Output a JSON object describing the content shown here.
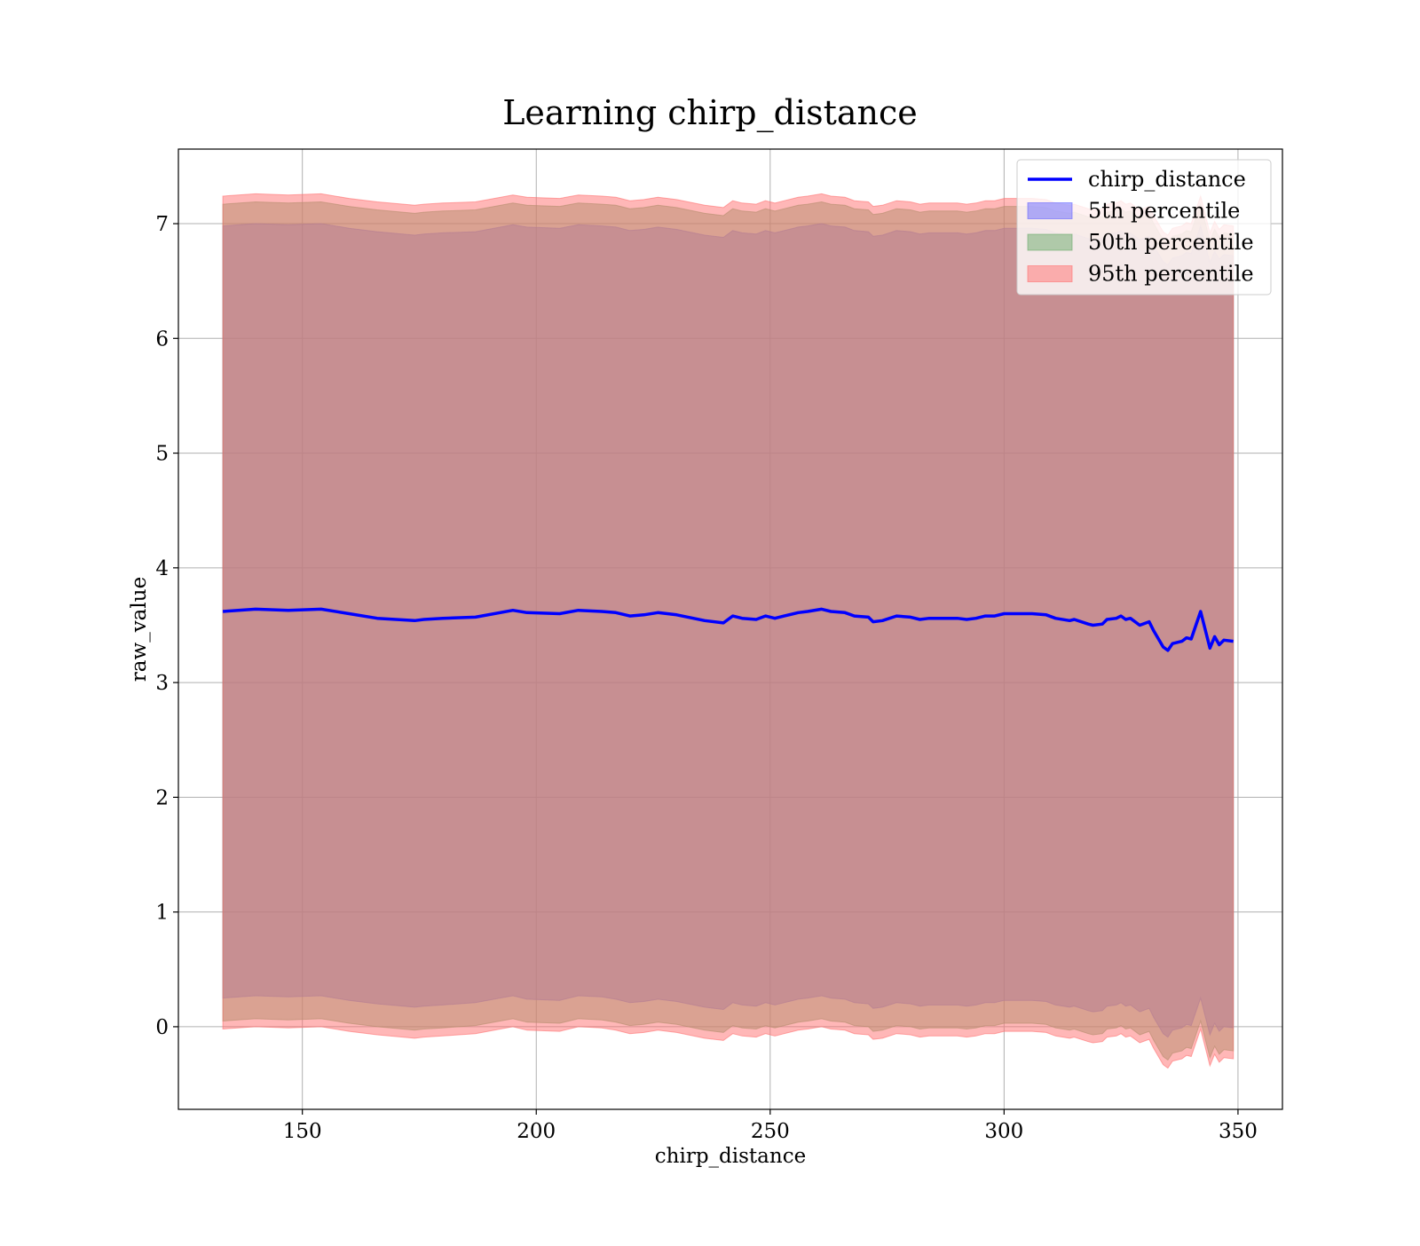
{
  "chart_data": {
    "type": "area",
    "title": "Learning chirp_distance",
    "xlabel": "chirp_distance",
    "ylabel": "raw_value",
    "xlim": [
      123.5,
      359.5
    ],
    "ylim": [
      -0.72,
      7.65
    ],
    "xticks": [
      150,
      200,
      250,
      300,
      350
    ],
    "yticks": [
      0,
      1,
      2,
      3,
      4,
      5,
      6,
      7
    ],
    "grid": true,
    "legend_position": "top-right",
    "x": [
      133,
      140,
      147,
      154,
      160,
      166,
      174,
      176,
      180,
      187,
      195,
      198,
      205,
      209,
      214,
      217,
      220,
      223,
      226,
      230,
      236,
      240,
      242,
      244,
      247,
      249,
      251,
      253,
      256,
      258,
      261,
      263,
      266,
      268,
      271,
      272,
      274,
      277,
      280,
      282,
      284,
      287,
      290,
      292,
      294,
      296,
      298,
      300,
      302,
      304,
      306,
      309,
      311,
      314,
      315,
      318,
      319,
      321,
      322,
      324,
      325,
      326,
      327,
      329,
      331,
      332,
      334,
      335,
      336,
      338,
      339,
      340,
      342,
      344,
      345,
      346,
      347,
      349
    ],
    "series": [
      {
        "name": "chirp_distance",
        "kind": "line",
        "color": "#0000ff",
        "values": [
          3.62,
          3.64,
          3.63,
          3.64,
          3.6,
          3.56,
          3.54,
          3.55,
          3.56,
          3.57,
          3.63,
          3.61,
          3.6,
          3.63,
          3.62,
          3.61,
          3.58,
          3.59,
          3.61,
          3.59,
          3.54,
          3.52,
          3.58,
          3.56,
          3.55,
          3.58,
          3.56,
          3.58,
          3.61,
          3.62,
          3.64,
          3.62,
          3.61,
          3.58,
          3.57,
          3.53,
          3.54,
          3.58,
          3.57,
          3.55,
          3.56,
          3.56,
          3.56,
          3.55,
          3.56,
          3.58,
          3.58,
          3.6,
          3.6,
          3.6,
          3.6,
          3.59,
          3.56,
          3.54,
          3.55,
          3.51,
          3.5,
          3.51,
          3.55,
          3.56,
          3.58,
          3.55,
          3.56,
          3.5,
          3.53,
          3.45,
          3.31,
          3.28,
          3.34,
          3.36,
          3.39,
          3.38,
          3.62,
          3.3,
          3.4,
          3.33,
          3.37,
          3.36
        ]
      },
      {
        "name": "5th percentile",
        "kind": "band",
        "color": "#6666ff",
        "lower": [
          0.25,
          0.27,
          0.26,
          0.27,
          0.23,
          0.2,
          0.17,
          0.18,
          0.19,
          0.21,
          0.27,
          0.24,
          0.23,
          0.27,
          0.26,
          0.24,
          0.21,
          0.22,
          0.24,
          0.22,
          0.17,
          0.15,
          0.21,
          0.19,
          0.18,
          0.21,
          0.19,
          0.21,
          0.24,
          0.25,
          0.27,
          0.25,
          0.24,
          0.21,
          0.2,
          0.16,
          0.17,
          0.21,
          0.2,
          0.18,
          0.19,
          0.19,
          0.19,
          0.18,
          0.19,
          0.21,
          0.21,
          0.23,
          0.23,
          0.23,
          0.23,
          0.22,
          0.19,
          0.17,
          0.18,
          0.14,
          0.13,
          0.14,
          0.18,
          0.19,
          0.21,
          0.18,
          0.19,
          0.13,
          0.16,
          0.08,
          -0.06,
          -0.09,
          -0.03,
          -0.01,
          0.02,
          0.01,
          0.25,
          -0.07,
          0.03,
          -0.04,
          0.0,
          -0.01
        ],
        "upper": [
          6.98,
          7.0,
          6.99,
          7.0,
          6.96,
          6.93,
          6.9,
          6.91,
          6.92,
          6.93,
          6.99,
          6.97,
          6.96,
          6.99,
          6.98,
          6.97,
          6.94,
          6.95,
          6.97,
          6.95,
          6.9,
          6.88,
          6.94,
          6.92,
          6.91,
          6.94,
          6.92,
          6.94,
          6.97,
          6.98,
          7.0,
          6.98,
          6.97,
          6.94,
          6.93,
          6.89,
          6.9,
          6.94,
          6.93,
          6.91,
          6.92,
          6.92,
          6.92,
          6.91,
          6.92,
          6.94,
          6.94,
          6.96,
          6.96,
          6.96,
          6.96,
          6.95,
          6.92,
          6.9,
          6.91,
          6.87,
          6.86,
          6.87,
          6.91,
          6.92,
          6.94,
          6.91,
          6.92,
          6.86,
          6.89,
          6.81,
          6.67,
          6.64,
          6.7,
          6.72,
          6.75,
          6.74,
          6.98,
          6.66,
          6.76,
          6.69,
          6.73,
          6.72
        ]
      },
      {
        "name": "50th percentile",
        "kind": "band",
        "color": "#6aaa6a",
        "lower": [
          0.05,
          0.07,
          0.06,
          0.07,
          0.03,
          0.0,
          -0.03,
          -0.02,
          -0.01,
          0.01,
          0.07,
          0.04,
          0.03,
          0.07,
          0.06,
          0.04,
          0.01,
          0.02,
          0.04,
          0.02,
          -0.03,
          -0.05,
          0.01,
          -0.01,
          -0.02,
          0.01,
          -0.01,
          0.01,
          0.04,
          0.05,
          0.07,
          0.05,
          0.04,
          0.01,
          0.0,
          -0.04,
          -0.03,
          0.01,
          0.0,
          -0.02,
          -0.01,
          -0.01,
          -0.01,
          -0.02,
          -0.01,
          0.01,
          0.01,
          0.03,
          0.03,
          0.03,
          0.03,
          0.02,
          -0.01,
          -0.03,
          -0.02,
          -0.06,
          -0.07,
          -0.06,
          -0.02,
          -0.01,
          0.01,
          -0.02,
          -0.01,
          -0.07,
          -0.04,
          -0.12,
          -0.26,
          -0.29,
          -0.23,
          -0.21,
          -0.18,
          -0.19,
          0.05,
          -0.27,
          -0.17,
          -0.24,
          -0.2,
          -0.21
        ],
        "upper": [
          7.17,
          7.19,
          7.18,
          7.19,
          7.15,
          7.12,
          7.09,
          7.1,
          7.11,
          7.12,
          7.18,
          7.16,
          7.15,
          7.18,
          7.17,
          7.16,
          7.13,
          7.14,
          7.16,
          7.14,
          7.09,
          7.07,
          7.13,
          7.11,
          7.1,
          7.13,
          7.11,
          7.13,
          7.16,
          7.17,
          7.19,
          7.17,
          7.16,
          7.13,
          7.12,
          7.08,
          7.09,
          7.13,
          7.12,
          7.1,
          7.11,
          7.11,
          7.11,
          7.1,
          7.11,
          7.13,
          7.13,
          7.15,
          7.15,
          7.15,
          7.15,
          7.14,
          7.11,
          7.09,
          7.1,
          7.06,
          7.05,
          7.06,
          7.1,
          7.11,
          7.13,
          7.1,
          7.11,
          7.05,
          7.08,
          7.0,
          6.86,
          6.83,
          6.89,
          6.91,
          6.94,
          6.93,
          7.17,
          6.85,
          6.95,
          6.88,
          6.92,
          6.91
        ]
      },
      {
        "name": "95th percentile",
        "kind": "band",
        "color": "#ff6f6f",
        "lower": [
          -0.02,
          0.0,
          -0.01,
          0.0,
          -0.04,
          -0.07,
          -0.1,
          -0.09,
          -0.08,
          -0.06,
          0.0,
          -0.03,
          -0.04,
          0.0,
          -0.01,
          -0.03,
          -0.06,
          -0.05,
          -0.03,
          -0.05,
          -0.1,
          -0.12,
          -0.06,
          -0.08,
          -0.09,
          -0.06,
          -0.08,
          -0.06,
          -0.03,
          -0.02,
          0.0,
          -0.02,
          -0.03,
          -0.06,
          -0.07,
          -0.11,
          -0.1,
          -0.06,
          -0.07,
          -0.09,
          -0.08,
          -0.08,
          -0.08,
          -0.09,
          -0.08,
          -0.06,
          -0.06,
          -0.04,
          -0.04,
          -0.04,
          -0.04,
          -0.05,
          -0.08,
          -0.1,
          -0.09,
          -0.13,
          -0.14,
          -0.13,
          -0.09,
          -0.08,
          -0.06,
          -0.09,
          -0.08,
          -0.14,
          -0.11,
          -0.19,
          -0.33,
          -0.36,
          -0.3,
          -0.28,
          -0.25,
          -0.26,
          -0.02,
          -0.34,
          -0.24,
          -0.31,
          -0.27,
          -0.28
        ],
        "upper": [
          7.24,
          7.26,
          7.25,
          7.26,
          7.22,
          7.19,
          7.16,
          7.17,
          7.18,
          7.19,
          7.25,
          7.23,
          7.22,
          7.25,
          7.24,
          7.23,
          7.2,
          7.21,
          7.23,
          7.21,
          7.16,
          7.14,
          7.2,
          7.18,
          7.17,
          7.2,
          7.18,
          7.2,
          7.23,
          7.24,
          7.26,
          7.24,
          7.23,
          7.2,
          7.19,
          7.15,
          7.16,
          7.2,
          7.19,
          7.17,
          7.18,
          7.18,
          7.18,
          7.17,
          7.18,
          7.2,
          7.2,
          7.22,
          7.22,
          7.22,
          7.22,
          7.21,
          7.18,
          7.16,
          7.17,
          7.13,
          7.12,
          7.13,
          7.17,
          7.18,
          7.2,
          7.17,
          7.18,
          7.12,
          7.15,
          7.07,
          6.93,
          6.9,
          6.96,
          6.98,
          7.01,
          7.0,
          7.24,
          6.92,
          7.02,
          6.95,
          6.99,
          6.98
        ]
      }
    ]
  }
}
